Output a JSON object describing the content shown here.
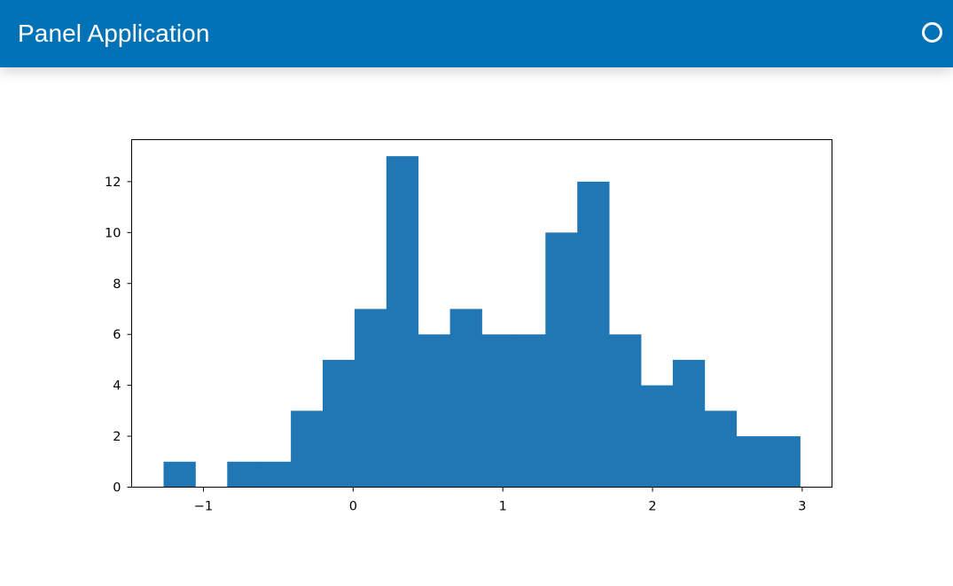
{
  "header": {
    "title": "Panel Application",
    "busy_indicator_icon": "busy-indicator-circle-icon",
    "background_color": "#0072b5"
  },
  "chart_data": {
    "type": "bar",
    "histogram": true,
    "bar_color": "#2077b4",
    "bin_width": 0.2126,
    "bins": [
      {
        "x0": -1.2663,
        "x1": -1.0537,
        "count": 1
      },
      {
        "x0": -1.0537,
        "x1": -0.8411,
        "count": 0
      },
      {
        "x0": -0.8411,
        "x1": -0.6285,
        "count": 1
      },
      {
        "x0": -0.6285,
        "x1": -0.4159,
        "count": 1
      },
      {
        "x0": -0.4159,
        "x1": -0.2033,
        "count": 3
      },
      {
        "x0": -0.2033,
        "x1": 0.0093,
        "count": 5
      },
      {
        "x0": 0.0093,
        "x1": 0.2219,
        "count": 7
      },
      {
        "x0": 0.2219,
        "x1": 0.4345,
        "count": 13
      },
      {
        "x0": 0.4345,
        "x1": 0.6471,
        "count": 6
      },
      {
        "x0": 0.6471,
        "x1": 0.8597,
        "count": 7
      },
      {
        "x0": 0.8597,
        "x1": 1.0723,
        "count": 6
      },
      {
        "x0": 1.0723,
        "x1": 1.2849,
        "count": 6
      },
      {
        "x0": 1.2849,
        "x1": 1.4975,
        "count": 10
      },
      {
        "x0": 1.4975,
        "x1": 1.7101,
        "count": 12
      },
      {
        "x0": 1.7101,
        "x1": 1.9227,
        "count": 6
      },
      {
        "x0": 1.9227,
        "x1": 2.1353,
        "count": 4
      },
      {
        "x0": 2.1353,
        "x1": 2.3479,
        "count": 5
      },
      {
        "x0": 2.3479,
        "x1": 2.5605,
        "count": 3
      },
      {
        "x0": 2.5605,
        "x1": 2.7731,
        "count": 2
      },
      {
        "x0": 2.7731,
        "x1": 2.9857,
        "count": 2
      }
    ],
    "xlim": [
      -1.4795,
      3.1989
    ],
    "ylim": [
      0,
      13.65
    ],
    "x_ticks": [
      {
        "value": -1,
        "label": "−1"
      },
      {
        "value": 0,
        "label": "0"
      },
      {
        "value": 1,
        "label": "1"
      },
      {
        "value": 2,
        "label": "2"
      },
      {
        "value": 3,
        "label": "3"
      }
    ],
    "y_ticks": [
      {
        "value": 0,
        "label": "0"
      },
      {
        "value": 2,
        "label": "2"
      },
      {
        "value": 4,
        "label": "4"
      },
      {
        "value": 6,
        "label": "6"
      },
      {
        "value": 8,
        "label": "8"
      },
      {
        "value": 10,
        "label": "10"
      },
      {
        "value": 12,
        "label": "12"
      }
    ],
    "title": "",
    "xlabel": "",
    "ylabel": "",
    "grid": false,
    "legend": "none"
  }
}
